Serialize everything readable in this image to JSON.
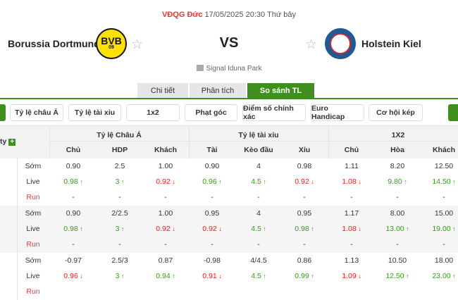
{
  "header": {
    "league": "VĐQG Đức",
    "datetime": "17/05/2025 20:30 Thứ bảy",
    "home": "Borussia Dortmund",
    "away": "Holstein Kiel",
    "home_logo_text": "BVB",
    "home_logo_sub": "09",
    "vs": "VS",
    "venue": "Signal Iduna Park"
  },
  "tabs": [
    {
      "label": "Chi tiết"
    },
    {
      "label": "Phân tích"
    },
    {
      "label": "So sánh TL",
      "active": true
    }
  ],
  "filters": [
    "Tỷ lệ châu Á",
    "Tỷ lệ tài xỉu",
    "1x2",
    "Phạt góc",
    "Điểm số chính xác",
    "Euro Handicap",
    "Cơ hội kép"
  ],
  "colors": {
    "accent": "#3f8f1e",
    "up": "#3a9a1e",
    "down": "#f02020",
    "league": "#e53935"
  },
  "table": {
    "company_header": "ty",
    "groups": [
      "Tỷ lệ Châu Á",
      "Tỷ lệ tài xỉu",
      "1X2"
    ],
    "subheaders": [
      "Chủ",
      "HDP",
      "Khách",
      "Tài",
      "Kèo đầu",
      "Xỉu",
      "Chủ",
      "Hòa",
      "Khách"
    ],
    "types": [
      "Sớm",
      "Live",
      "Run"
    ],
    "rows": [
      {
        "early": [
          "0.90",
          "2.5",
          "1.00",
          "0.90",
          "4",
          "0.98",
          "1.11",
          "8.20",
          "12.50"
        ],
        "live": [
          [
            "0.98",
            "up"
          ],
          [
            "3",
            "up"
          ],
          [
            "0.92",
            "down"
          ],
          [
            "0.96",
            "up"
          ],
          [
            "4.5",
            "up"
          ],
          [
            "0.92",
            "down"
          ],
          [
            "1.08",
            "down"
          ],
          [
            "9.80",
            "up"
          ],
          [
            "14.50",
            "up"
          ]
        ],
        "run": [
          "-",
          "-",
          "-",
          "-",
          "-",
          "-",
          "-",
          "-",
          "-"
        ]
      },
      {
        "early": [
          "0.90",
          "2/2.5",
          "1.00",
          "0.95",
          "4",
          "0.95",
          "1.17",
          "8.00",
          "15.00"
        ],
        "live": [
          [
            "0.98",
            "up"
          ],
          [
            "3",
            "up"
          ],
          [
            "0.92",
            "down"
          ],
          [
            "0.92",
            "down"
          ],
          [
            "4.5",
            "up"
          ],
          [
            "0.98",
            "up"
          ],
          [
            "1.08",
            "down"
          ],
          [
            "13.00",
            "up"
          ],
          [
            "19.00",
            "up"
          ]
        ],
        "run": [
          "-",
          "-",
          "-",
          "-",
          "-",
          "-",
          "-",
          "-",
          "-"
        ]
      },
      {
        "early": [
          "-0.97",
          "2.5/3",
          "0.87",
          "-0.98",
          "4/4.5",
          "0.86",
          "1.13",
          "10.50",
          "18.00"
        ],
        "live": [
          [
            "0.96",
            "down"
          ],
          [
            "3",
            "up"
          ],
          [
            "0.94",
            "up"
          ],
          [
            "0.91",
            "down"
          ],
          [
            "4.5",
            "up"
          ],
          [
            "0.99",
            "up"
          ],
          [
            "1.09",
            "down"
          ],
          [
            "12.50",
            "up"
          ],
          [
            "23.00",
            "up"
          ]
        ],
        "run": []
      }
    ]
  }
}
